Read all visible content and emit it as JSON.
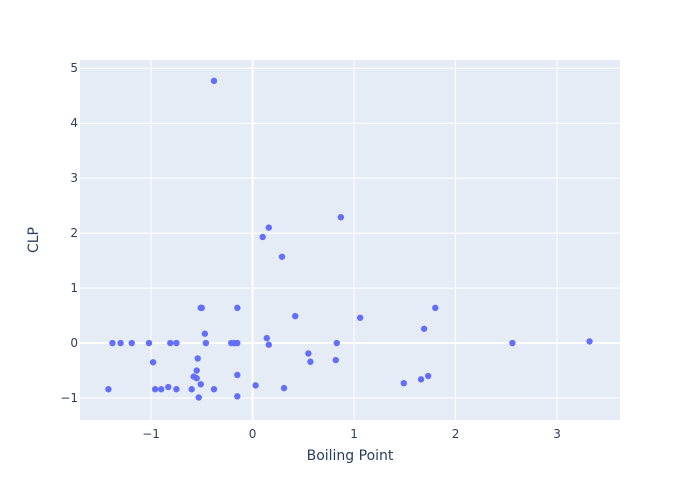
{
  "chart_data": {
    "type": "scatter",
    "title": "",
    "xlabel": "Boiling Point",
    "ylabel": "CLP",
    "xlim": [
      -1.7,
      3.62
    ],
    "ylim": [
      -1.4,
      5.15
    ],
    "x_ticks": [
      -1,
      0,
      1,
      2,
      3
    ],
    "y_ticks": [
      -1,
      0,
      1,
      2,
      3,
      4,
      5
    ],
    "x_tick_labels": [
      "−1",
      "0",
      "1",
      "2",
      "3"
    ],
    "y_tick_labels": [
      "−1",
      "0",
      "1",
      "2",
      "3",
      "4",
      "5"
    ],
    "grid": true,
    "colors": {
      "marker": "#636efa",
      "plot_bg": "#e5ecf6",
      "grid": "#ffffff",
      "text": "#2a3f5f"
    },
    "series": [
      {
        "points": [
          [
            -1.42,
            -0.84
          ],
          [
            -1.38,
            0.0
          ],
          [
            -1.3,
            0.0
          ],
          [
            -1.19,
            0.0
          ],
          [
            -1.02,
            0.0
          ],
          [
            -0.98,
            -0.35
          ],
          [
            -0.96,
            -0.84
          ],
          [
            -0.9,
            -0.84
          ],
          [
            -0.83,
            -0.8
          ],
          [
            -0.81,
            0.0
          ],
          [
            -0.75,
            0.0
          ],
          [
            -0.75,
            -0.84
          ],
          [
            -0.6,
            -0.84
          ],
          [
            -0.58,
            -0.61
          ],
          [
            -0.55,
            -0.64
          ],
          [
            -0.55,
            -0.5
          ],
          [
            -0.54,
            -0.28
          ],
          [
            -0.53,
            -0.99
          ],
          [
            -0.51,
            0.64
          ],
          [
            -0.5,
            0.64
          ],
          [
            -0.51,
            -0.75
          ],
          [
            -0.47,
            0.17
          ],
          [
            -0.46,
            0.0
          ],
          [
            -0.38,
            -0.84
          ],
          [
            -0.38,
            4.77
          ],
          [
            -0.21,
            0.0
          ],
          [
            -0.18,
            0.0
          ],
          [
            -0.15,
            0.0
          ],
          [
            -0.15,
            -0.58
          ],
          [
            -0.15,
            -0.97
          ],
          [
            -0.15,
            0.64
          ],
          [
            0.03,
            -0.77
          ],
          [
            0.1,
            1.93
          ],
          [
            0.14,
            0.09
          ],
          [
            0.16,
            2.1
          ],
          [
            0.16,
            -0.03
          ],
          [
            0.29,
            1.57
          ],
          [
            0.31,
            -0.82
          ],
          [
            0.42,
            0.49
          ],
          [
            0.55,
            -0.19
          ],
          [
            0.57,
            -0.34
          ],
          [
            0.82,
            -0.31
          ],
          [
            0.83,
            0.0
          ],
          [
            0.87,
            2.29
          ],
          [
            1.06,
            0.46
          ],
          [
            1.49,
            -0.73
          ],
          [
            1.66,
            -0.66
          ],
          [
            1.69,
            0.26
          ],
          [
            1.73,
            -0.6
          ],
          [
            1.8,
            0.64
          ],
          [
            2.56,
            0.0
          ],
          [
            3.32,
            0.03
          ]
        ]
      }
    ]
  }
}
